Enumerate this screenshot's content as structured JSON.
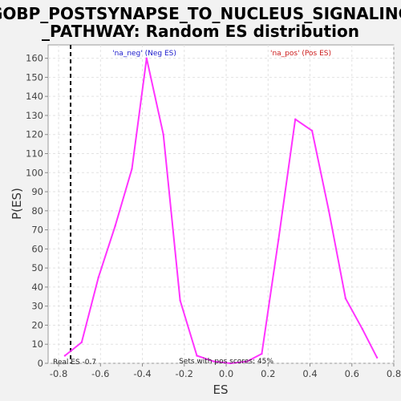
{
  "chart_data": {
    "type": "line",
    "title_lines": [
      "GOBP_POSTSYNAPSE_TO_NUCLEUS_SIGNALING",
      "_PATHWAY: Random ES distribution"
    ],
    "xlabel": "ES",
    "ylabel": "P(ES)",
    "xlim": [
      -0.85,
      0.8
    ],
    "ylim": [
      0,
      167
    ],
    "x_ticks": [
      -0.8,
      -0.6,
      -0.4,
      -0.2,
      0.0,
      0.2,
      0.4,
      0.6,
      0.8
    ],
    "x_tick_labels": [
      "-0.8",
      "-0.6",
      "-0.4",
      "-0.2",
      "0.0",
      "0.2",
      "0.4",
      "0.6",
      "0.8"
    ],
    "y_ticks": [
      0,
      10,
      20,
      30,
      40,
      50,
      60,
      70,
      80,
      90,
      100,
      110,
      120,
      130,
      140,
      150,
      160
    ],
    "y_tick_labels": [
      "0",
      "10",
      "20",
      "30",
      "40",
      "50",
      "60",
      "70",
      "80",
      "90",
      "100",
      "110",
      "120",
      "130",
      "140",
      "150",
      "160"
    ],
    "grid": true,
    "series": [
      {
        "color": "#ff33ff",
        "x": [
          -0.77,
          -0.69,
          -0.61,
          -0.53,
          -0.45,
          -0.38,
          -0.3,
          -0.22,
          -0.14,
          -0.06,
          0.02,
          0.1,
          0.17,
          0.25,
          0.33,
          0.41,
          0.49,
          0.57,
          0.65,
          0.72
        ],
        "y": [
          4,
          11,
          45,
          72,
          102,
          160,
          120,
          33,
          4,
          1,
          0,
          1,
          5,
          65,
          128,
          122,
          80,
          34,
          18,
          3
        ]
      }
    ],
    "real_es": -0.7426,
    "annotations": {
      "neg_label": "'na_neg' (Neg ES)",
      "pos_label": "'na_pos' (Pos ES)",
      "real_es_label": "Real ES -0.7",
      "pos_scores_label": "Sets with pos scores: 45%"
    },
    "colors": {
      "neg": "#1a1acc",
      "pos": "#cc1a1a",
      "real_es_line": "#000000"
    }
  }
}
